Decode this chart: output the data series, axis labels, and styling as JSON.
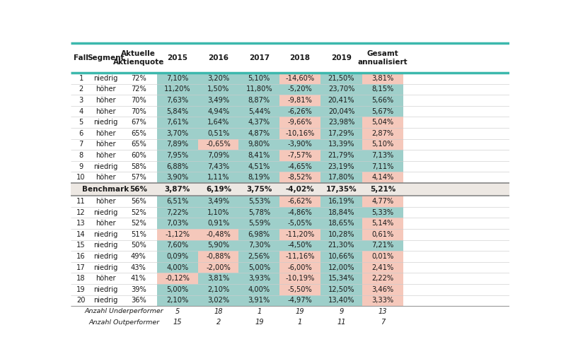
{
  "headers": [
    "Fall",
    "Segment",
    "Aktuelle\nAktienquote",
    "2015",
    "2016",
    "2017",
    "2018",
    "2019",
    "Gesamt\nannualisiert"
  ],
  "benchmark": [
    "",
    "Benchmark",
    "56%",
    "3,87%",
    "6,19%",
    "3,75%",
    "-4,02%",
    "17,35%",
    "5,21%"
  ],
  "rows": [
    [
      "1",
      "niedrig",
      "72%",
      "7,10%",
      "3,20%",
      "5,10%",
      "-14,60%",
      "21,50%",
      "3,81%"
    ],
    [
      "2",
      "höher",
      "72%",
      "11,20%",
      "1,50%",
      "11,80%",
      "-5,20%",
      "23,70%",
      "8,15%"
    ],
    [
      "3",
      "höher",
      "70%",
      "7,63%",
      "3,49%",
      "8,87%",
      "-9,81%",
      "20,41%",
      "5,66%"
    ],
    [
      "4",
      "höher",
      "70%",
      "5,84%",
      "4,94%",
      "5,44%",
      "-6,26%",
      "20,04%",
      "5,67%"
    ],
    [
      "5",
      "niedrig",
      "67%",
      "7,61%",
      "1,64%",
      "4,37%",
      "-9,66%",
      "23,98%",
      "5,04%"
    ],
    [
      "6",
      "höher",
      "65%",
      "3,70%",
      "0,51%",
      "4,87%",
      "-10,16%",
      "17,29%",
      "2,87%"
    ],
    [
      "7",
      "höher",
      "65%",
      "7,89%",
      "-0,65%",
      "9,80%",
      "-3,90%",
      "13,39%",
      "5,10%"
    ],
    [
      "8",
      "höher",
      "60%",
      "7,95%",
      "7,09%",
      "8,41%",
      "-7,57%",
      "21,79%",
      "7,13%"
    ],
    [
      "9",
      "niedrig",
      "58%",
      "6,88%",
      "7,43%",
      "4,51%",
      "-4,65%",
      "23,19%",
      "7,11%"
    ],
    [
      "10",
      "höher",
      "57%",
      "3,90%",
      "1,11%",
      "8,19%",
      "-8,52%",
      "17,80%",
      "4,14%"
    ],
    [
      "11",
      "höher",
      "56%",
      "6,51%",
      "3,49%",
      "5,53%",
      "-6,62%",
      "16,19%",
      "4,77%"
    ],
    [
      "12",
      "niedrig",
      "52%",
      "7,22%",
      "1,10%",
      "5,78%",
      "-4,86%",
      "18,84%",
      "5,33%"
    ],
    [
      "13",
      "höher",
      "52%",
      "7,03%",
      "0,91%",
      "5,59%",
      "-5,05%",
      "18,65%",
      "5,14%"
    ],
    [
      "14",
      "niedrig",
      "51%",
      "-1,12%",
      "-0,48%",
      "6,98%",
      "-11,20%",
      "10,28%",
      "0,61%"
    ],
    [
      "15",
      "niedrig",
      "50%",
      "7,60%",
      "5,90%",
      "7,30%",
      "-4,50%",
      "21,30%",
      "7,21%"
    ],
    [
      "16",
      "niedrig",
      "49%",
      "0,09%",
      "-0,88%",
      "2,56%",
      "-11,16%",
      "10,66%",
      "0,01%"
    ],
    [
      "17",
      "niedrig",
      "43%",
      "4,00%",
      "-2,00%",
      "5,00%",
      "-6,00%",
      "12,00%",
      "2,41%"
    ],
    [
      "18",
      "höher",
      "41%",
      "-0,12%",
      "3,81%",
      "3,93%",
      "-10,19%",
      "15,34%",
      "2,22%"
    ],
    [
      "19",
      "niedrig",
      "39%",
      "5,00%",
      "2,10%",
      "4,00%",
      "-5,50%",
      "12,50%",
      "3,46%"
    ],
    [
      "20",
      "niedrig",
      "36%",
      "2,10%",
      "3,02%",
      "3,91%",
      "-4,97%",
      "13,40%",
      "3,33%"
    ]
  ],
  "footer_rows": [
    [
      "",
      "",
      "Anzahl Underperformer",
      "5",
      "18",
      "1",
      "19",
      "9",
      "13"
    ],
    [
      "",
      "",
      "Anzahl Outperformer",
      "15",
      "2",
      "19",
      "1",
      "11",
      "7"
    ]
  ],
  "cell_colors": [
    [
      "teal",
      "teal",
      "teal",
      "salmon",
      "teal",
      "salmon"
    ],
    [
      "teal",
      "teal",
      "teal",
      "teal",
      "teal",
      "teal"
    ],
    [
      "teal",
      "teal",
      "teal",
      "salmon",
      "teal",
      "teal"
    ],
    [
      "teal",
      "teal",
      "teal",
      "teal",
      "teal",
      "teal"
    ],
    [
      "teal",
      "teal",
      "teal",
      "salmon",
      "teal",
      "salmon"
    ],
    [
      "teal",
      "teal",
      "teal",
      "salmon",
      "teal",
      "salmon"
    ],
    [
      "teal",
      "salmon",
      "teal",
      "teal",
      "teal",
      "salmon"
    ],
    [
      "teal",
      "teal",
      "teal",
      "salmon",
      "teal",
      "teal"
    ],
    [
      "teal",
      "teal",
      "teal",
      "teal",
      "teal",
      "teal"
    ],
    [
      "teal",
      "teal",
      "teal",
      "salmon",
      "teal",
      "salmon"
    ],
    [
      "teal",
      "teal",
      "teal",
      "salmon",
      "teal",
      "salmon"
    ],
    [
      "teal",
      "teal",
      "teal",
      "teal",
      "teal",
      "teal"
    ],
    [
      "teal",
      "teal",
      "teal",
      "teal",
      "teal",
      "salmon"
    ],
    [
      "salmon",
      "salmon",
      "teal",
      "salmon",
      "teal",
      "salmon"
    ],
    [
      "teal",
      "teal",
      "teal",
      "teal",
      "teal",
      "teal"
    ],
    [
      "teal",
      "salmon",
      "teal",
      "salmon",
      "teal",
      "salmon"
    ],
    [
      "teal",
      "salmon",
      "teal",
      "salmon",
      "teal",
      "salmon"
    ],
    [
      "salmon",
      "teal",
      "teal",
      "salmon",
      "teal",
      "salmon"
    ],
    [
      "teal",
      "teal",
      "teal",
      "salmon",
      "teal",
      "salmon"
    ],
    [
      "teal",
      "teal",
      "teal",
      "teal",
      "teal",
      "salmon"
    ]
  ],
  "teal_color": "#9ecfca",
  "salmon_color": "#f5c8bb",
  "benchmark_color": "#ede8e3",
  "thick_line_color": "#3cb8ad",
  "white": "#ffffff",
  "text_color": "#1a1a1a"
}
